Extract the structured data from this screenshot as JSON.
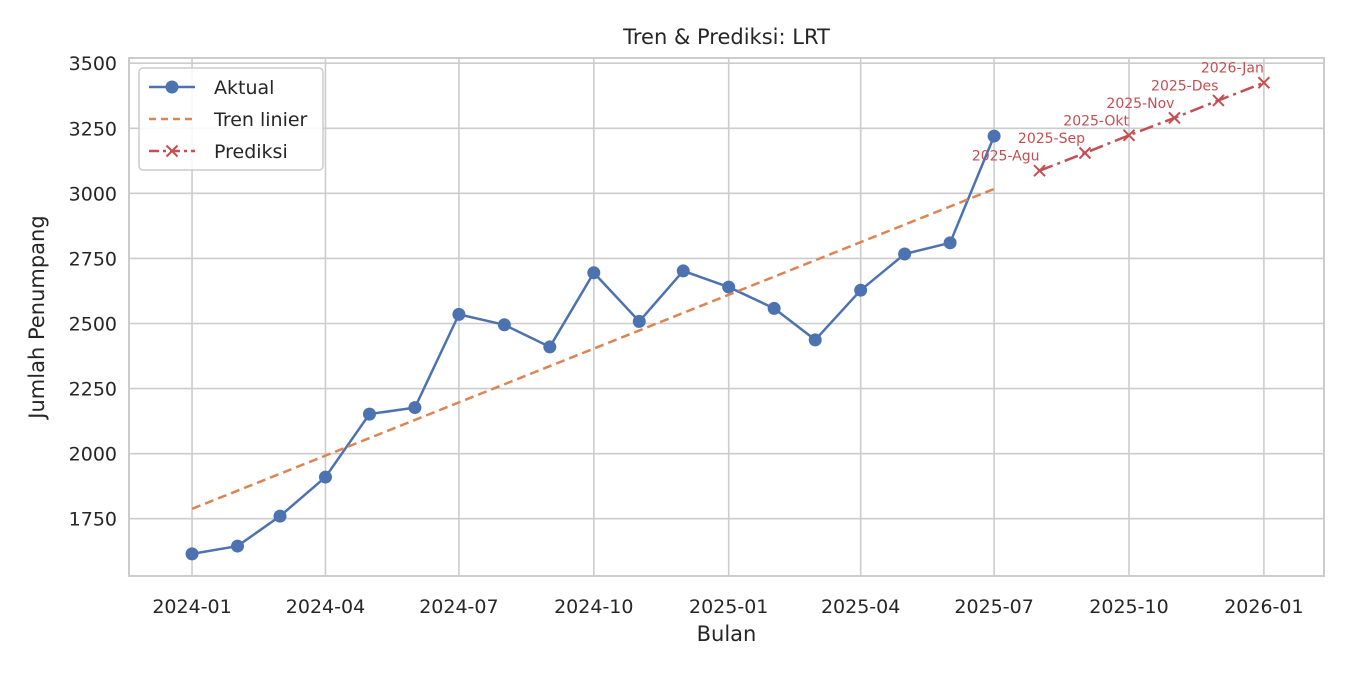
{
  "colors": {
    "actual": "#4c72b0",
    "trend": "#dd8452",
    "prediction": "#c44e52",
    "grid": "#cccccc",
    "text": "#262626"
  },
  "chart_data": {
    "type": "line",
    "title": "Tren & Prediksi: LRT",
    "xlabel": "Bulan",
    "ylabel": "Jumlah Penumpang",
    "xlim": [
      "2023-11-19",
      "2026-02-11"
    ],
    "ylim": [
      1530,
      3520
    ],
    "grid": true,
    "legend_position": "upper-left",
    "x_ticks": [
      "2024-01",
      "2024-04",
      "2024-07",
      "2024-10",
      "2025-01",
      "2025-04",
      "2025-07",
      "2025-10",
      "2026-01"
    ],
    "y_ticks": [
      1750,
      2000,
      2250,
      2500,
      2750,
      3000,
      3250,
      3500
    ],
    "series": [
      {
        "name": "Aktual",
        "style": "solid-circle",
        "points": [
          {
            "x": "2024-01",
            "y": 1615
          },
          {
            "x": "2024-02",
            "y": 1645
          },
          {
            "x": "2024-03",
            "y": 1760
          },
          {
            "x": "2024-04",
            "y": 1910
          },
          {
            "x": "2024-05",
            "y": 2152
          },
          {
            "x": "2024-06",
            "y": 2177
          },
          {
            "x": "2024-07",
            "y": 2535
          },
          {
            "x": "2024-08",
            "y": 2495
          },
          {
            "x": "2024-09",
            "y": 2410
          },
          {
            "x": "2024-10",
            "y": 2695
          },
          {
            "x": "2024-11",
            "y": 2508
          },
          {
            "x": "2024-12",
            "y": 2702
          },
          {
            "x": "2025-01",
            "y": 2640
          },
          {
            "x": "2025-02",
            "y": 2558
          },
          {
            "x": "2025-03",
            "y": 2437
          },
          {
            "x": "2025-04",
            "y": 2628
          },
          {
            "x": "2025-05",
            "y": 2767
          },
          {
            "x": "2025-06",
            "y": 2810
          },
          {
            "x": "2025-07",
            "y": 3220
          }
        ]
      },
      {
        "name": "Tren linier",
        "style": "dashed",
        "points": [
          {
            "x": "2024-01",
            "y": 1788
          },
          {
            "x": "2025-07",
            "y": 3017
          }
        ]
      },
      {
        "name": "Prediksi",
        "style": "dashdot-x",
        "points": [
          {
            "x": "2025-08",
            "y": 3087,
            "label": "2025-Agu"
          },
          {
            "x": "2025-09",
            "y": 3155,
            "label": "2025-Sep"
          },
          {
            "x": "2025-10",
            "y": 3223,
            "label": "2025-Okt"
          },
          {
            "x": "2025-11",
            "y": 3290,
            "label": "2025-Nov"
          },
          {
            "x": "2025-12",
            "y": 3357,
            "label": "2025-Des"
          },
          {
            "x": "2026-01",
            "y": 3425,
            "label": "2026-Jan"
          }
        ]
      }
    ]
  }
}
